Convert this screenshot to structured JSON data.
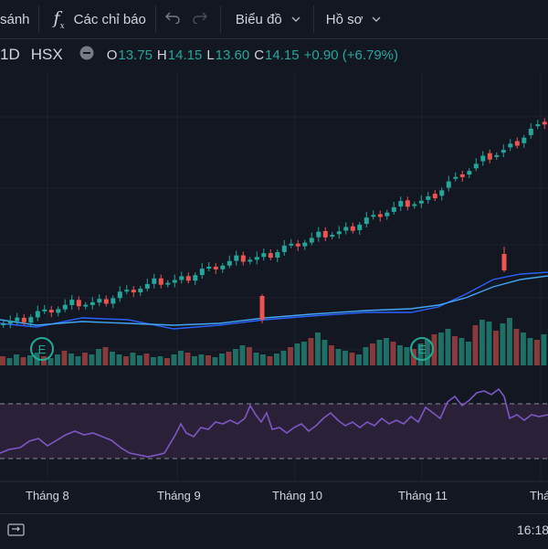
{
  "toolbar": {
    "compare_label": "sánh",
    "indicators_label": "Các chỉ báo",
    "chart_label": "Biểu đồ",
    "profile_label": "Hồ sơ"
  },
  "legend": {
    "interval": "1D",
    "exchange": "HSX",
    "o_key": "O",
    "o_val": "13.75",
    "h_key": "H",
    "h_val": "14.15",
    "l_key": "L",
    "l_val": "13.60",
    "c_key": "C",
    "c_val": "14.15",
    "change": "+0.90 (+6.79%)"
  },
  "x_axis": {
    "labels": [
      "Tháng 8",
      "Tháng 9",
      "Tháng 10",
      "Tháng 11",
      "Thá"
    ]
  },
  "bottom": {
    "time": "16:18"
  },
  "icons": {
    "indicators": "fx-icon",
    "undo": "undo-icon",
    "redo": "redo-icon",
    "hide": "minus-circle-icon",
    "earnings": "earnings-e-icon",
    "replay": "replay-icon"
  },
  "colors": {
    "background": "#131722",
    "up": "#26a69a",
    "down": "#ef5350",
    "ma_fast": "#2962ff",
    "ma_slow": "#42a5f5",
    "rsi_line": "#7e57c2",
    "rsi_band": "#2a2139",
    "earnings_badge": "#22ab94"
  }
}
